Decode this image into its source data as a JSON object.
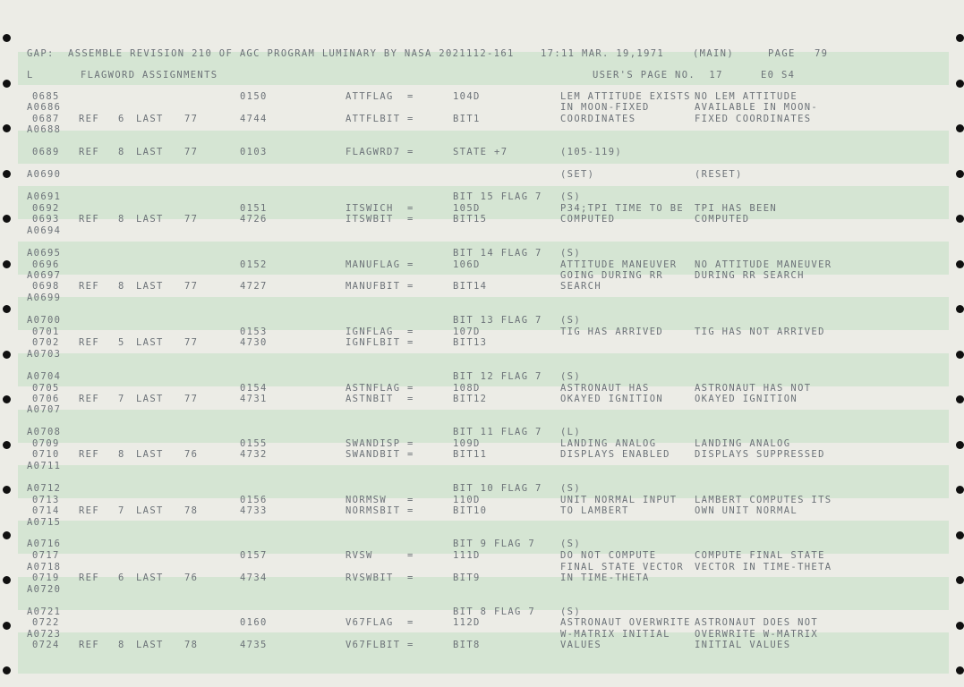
{
  "header": {
    "line1": "GAP:  ASSEMBLE REVISION 210 OF AGC PROGRAM LUMINARY BY NASA 2021112-161",
    "time": "17:11 MAR. 19,1971",
    "main": "(MAIN)",
    "page_label": "PAGE",
    "page_number": "79",
    "l": "L",
    "section": "FLAGWORD ASSIGNMENTS",
    "users_page": "USER'S PAGE NO.  17",
    "eo": "E0 S4"
  },
  "columns": {
    "set": "(SET)",
    "reset": "(RESET)"
  },
  "rows": [
    {
      "line": "0685",
      "addr": "0150",
      "name": "ATTFLAG  =",
      "val": "104D",
      "set": "LEM ATTITUDE EXISTS",
      "reset": "NO LEM ATTITUDE"
    },
    {
      "line": "A0686",
      "set": "IN MOON-FIXED",
      "reset": "AVAILABLE IN MOON-"
    },
    {
      "line": "0687",
      "ref": "REF",
      "refn": "6",
      "last": "LAST",
      "lastn": "77",
      "addr": "4744",
      "name": "ATTFLBIT =",
      "val": "BIT1",
      "set": "COORDINATES",
      "reset": "FIXED COORDINATES"
    },
    {
      "line": "A0688"
    },
    {
      "line": "0689",
      "ref": "REF",
      "refn": "8",
      "last": "LAST",
      "lastn": "77",
      "addr": "0103",
      "name": "FLAGWRD7 =",
      "val": "STATE +7",
      "set": "(105-119)"
    },
    {
      "line": "A0690",
      "set": "(SET)",
      "reset": "(RESET)"
    },
    {
      "line": "A0691",
      "val": "BIT 15 FLAG 7",
      "set": "(S)"
    },
    {
      "line": "0692",
      "addr": "0151",
      "name": "ITSWICH  =",
      "val": "105D",
      "set": "P34;TPI TIME TO BE",
      "reset": "TPI HAS BEEN"
    },
    {
      "line": "0693",
      "ref": "REF",
      "refn": "8",
      "last": "LAST",
      "lastn": "77",
      "addr": "4726",
      "name": "ITSWBIT  =",
      "val": "BIT15",
      "set": "COMPUTED",
      "reset": "COMPUTED"
    },
    {
      "line": "A0694"
    },
    {
      "line": "A0695",
      "val": "BIT 14 FLAG 7",
      "set": "(S)"
    },
    {
      "line": "0696",
      "addr": "0152",
      "name": "MANUFLAG =",
      "val": "106D",
      "set": "ATTITUDE MANEUVER",
      "reset": "NO ATTITUDE MANEUVER"
    },
    {
      "line": "A0697",
      "set": "GOING DURING RR",
      "reset": "DURING RR SEARCH"
    },
    {
      "line": "0698",
      "ref": "REF",
      "refn": "8",
      "last": "LAST",
      "lastn": "77",
      "addr": "4727",
      "name": "MANUFBIT =",
      "val": "BIT14",
      "set": "SEARCH"
    },
    {
      "line": "A0699"
    },
    {
      "line": "A0700",
      "val": "BIT 13 FLAG 7",
      "set": "(S)"
    },
    {
      "line": "0701",
      "addr": "0153",
      "name": "IGNFLAG  =",
      "val": "107D",
      "set": "TIG HAS ARRIVED",
      "reset": "TIG HAS NOT ARRIVED"
    },
    {
      "line": "0702",
      "ref": "REF",
      "refn": "5",
      "last": "LAST",
      "lastn": "77",
      "addr": "4730",
      "name": "IGNFLBIT =",
      "val": "BIT13"
    },
    {
      "line": "A0703"
    },
    {
      "line": "A0704",
      "val": "BIT 12 FLAG 7",
      "set": "(S)"
    },
    {
      "line": "0705",
      "addr": "0154",
      "name": "ASTNFLAG =",
      "val": "108D",
      "set": "ASTRONAUT HAS",
      "reset": "ASTRONAUT HAS NOT"
    },
    {
      "line": "0706",
      "ref": "REF",
      "refn": "7",
      "last": "LAST",
      "lastn": "77",
      "addr": "4731",
      "name": "ASTNBIT  =",
      "val": "BIT12",
      "set": "OKAYED IGNITION",
      "reset": "OKAYED IGNITION"
    },
    {
      "line": "A0707"
    },
    {
      "line": "A0708",
      "val": "BIT 11 FLAG 7",
      "set": "(L)"
    },
    {
      "line": "0709",
      "addr": "0155",
      "name": "SWANDISP =",
      "val": "109D",
      "set": "LANDING ANALOG",
      "reset": "LANDING ANALOG"
    },
    {
      "line": "0710",
      "ref": "REF",
      "refn": "8",
      "last": "LAST",
      "lastn": "76",
      "addr": "4732",
      "name": "SWANDBIT =",
      "val": "BIT11",
      "set": "DISPLAYS ENABLED",
      "reset": "DISPLAYS SUPPRESSED"
    },
    {
      "line": "A0711"
    },
    {
      "line": "A0712",
      "val": "BIT 10 FLAG 7",
      "set": "(S)"
    },
    {
      "line": "0713",
      "addr": "0156",
      "name": "NORMSW   =",
      "val": "110D",
      "set": "UNIT NORMAL INPUT",
      "reset": "LAMBERT COMPUTES ITS"
    },
    {
      "line": "0714",
      "ref": "REF",
      "refn": "7",
      "last": "LAST",
      "lastn": "78",
      "addr": "4733",
      "name": "NORMSBIT =",
      "val": "BIT10",
      "set": "TO LAMBERT",
      "reset": "OWN UNIT NORMAL"
    },
    {
      "line": "A0715"
    },
    {
      "line": "A0716",
      "val": "BIT 9 FLAG 7",
      "set": "(S)"
    },
    {
      "line": "0717",
      "addr": "0157",
      "name": "RVSW     =",
      "val": "111D",
      "set": "DO NOT COMPUTE",
      "reset": "COMPUTE FINAL STATE"
    },
    {
      "line": "A0718",
      "set": "FINAL STATE VECTOR",
      "reset": "VECTOR IN TIME-THETA"
    },
    {
      "line": "0719",
      "ref": "REF",
      "refn": "6",
      "last": "LAST",
      "lastn": "76",
      "addr": "4734",
      "name": "RVSWBIT  =",
      "val": "BIT9",
      "set": "IN TIME-THETA"
    },
    {
      "line": "A0720"
    },
    {
      "line": "A0721",
      "val": "BIT 8 FLAG 7",
      "set": "(S)"
    },
    {
      "line": "0722",
      "addr": "0160",
      "name": "V67FLAG  =",
      "val": "112D",
      "set": "ASTRONAUT OVERWRITE",
      "reset": "ASTRONAUT DOES NOT"
    },
    {
      "line": "A0723",
      "set": "W-MATRIX INITIAL",
      "reset": "OVERWRITE W-MATRIX"
    },
    {
      "line": "0724",
      "ref": "REF",
      "refn": "8",
      "last": "LAST",
      "lastn": "78",
      "addr": "4735",
      "name": "V67FLBIT =",
      "val": "BIT8",
      "set": "VALUES",
      "reset": "INITIAL VALUES"
    }
  ]
}
